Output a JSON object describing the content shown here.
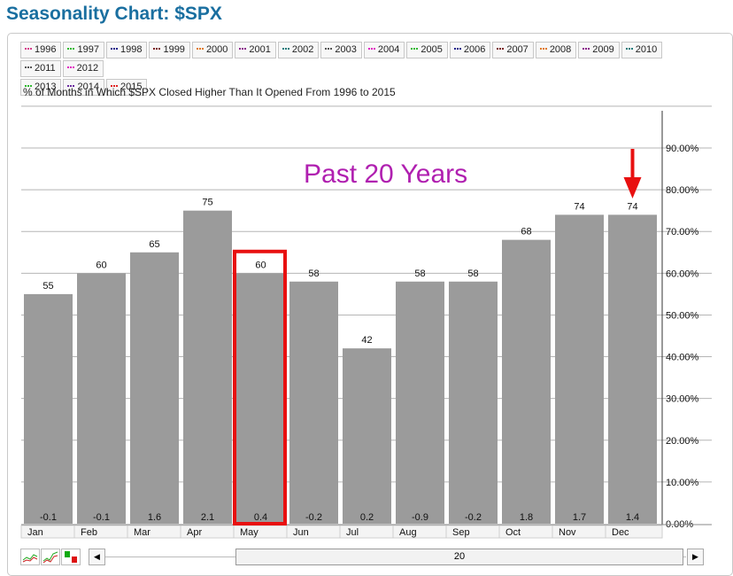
{
  "page": {
    "title": "Seasonality Chart: $SPX"
  },
  "legend": [
    {
      "label": "1996",
      "color": "#d63c8b"
    },
    {
      "label": "1997",
      "color": "#2db82d"
    },
    {
      "label": "1998",
      "color": "#1a1a8a"
    },
    {
      "label": "1999",
      "color": "#7a1a1a"
    },
    {
      "label": "2000",
      "color": "#e07820"
    },
    {
      "label": "2001",
      "color": "#8a1a8a"
    },
    {
      "label": "2002",
      "color": "#1a7a7a"
    },
    {
      "label": "2003",
      "color": "#555555"
    },
    {
      "label": "2004",
      "color": "#e020c0"
    },
    {
      "label": "2005",
      "color": "#2db82d"
    },
    {
      "label": "2006",
      "color": "#1a1a8a"
    },
    {
      "label": "2007",
      "color": "#7a1a1a"
    },
    {
      "label": "2008",
      "color": "#e07820"
    },
    {
      "label": "2009",
      "color": "#8a1a8a"
    },
    {
      "label": "2010",
      "color": "#1a7a7a"
    },
    {
      "label": "2011",
      "color": "#555555"
    },
    {
      "label": "2012",
      "color": "#e020c0"
    },
    {
      "label": "2013",
      "color": "#2db82d"
    },
    {
      "label": "2014",
      "color": "#6a2aa0"
    },
    {
      "label": "2015",
      "color": "#e02020"
    }
  ],
  "chart_data": {
    "type": "bar",
    "title": "% of Months in Which $SPX Closed Higher Than It Opened From 1996 to 2015",
    "categories": [
      "Jan",
      "Feb",
      "Mar",
      "Apr",
      "May",
      "Jun",
      "Jul",
      "Aug",
      "Sep",
      "Oct",
      "Nov",
      "Dec"
    ],
    "values": [
      55,
      60,
      65,
      75,
      60,
      58,
      42,
      58,
      58,
      68,
      74,
      74
    ],
    "secondary_values": [
      "-0.1",
      "-0.1",
      "1.6",
      "2.1",
      "0.4",
      "-0.2",
      "0.2",
      "-0.9",
      "-0.2",
      "1.8",
      "1.7",
      "1.4"
    ],
    "y_ticks": [
      "0.00%",
      "10.00%",
      "20.00%",
      "30.00%",
      "40.00%",
      "50.00%",
      "60.00%",
      "70.00%",
      "80.00%",
      "90.00%"
    ],
    "ylim": [
      0,
      100
    ],
    "y_axis_side": "right",
    "grid": true,
    "bar_color": "#9b9b9b",
    "annotation_text": "Past 20 Years",
    "annotation_color": "#b020b0",
    "highlight_category": "May",
    "highlight_color": "#e81010",
    "arrow_category": "Dec",
    "arrow_color": "#e81010"
  },
  "controls": {
    "scroll_left": "◀",
    "scroll_right": "▶",
    "slider_value": "20"
  }
}
